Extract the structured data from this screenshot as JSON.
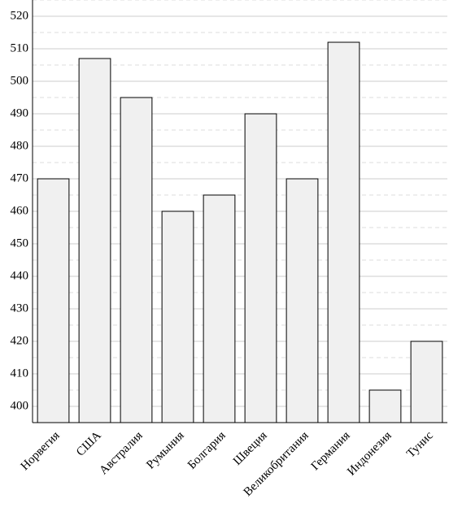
{
  "chart_data": {
    "type": "bar",
    "categories": [
      "Норвегия",
      "США",
      "Австралия",
      "Румыния",
      "Болгария",
      "Швеция",
      "Великобритания",
      "Германия",
      "Индонезия",
      "Тунис"
    ],
    "values": [
      470,
      507,
      495,
      460,
      465,
      490,
      470,
      512,
      405,
      420
    ],
    "color": "#f0f0f0",
    "ylim": [
      395,
      525
    ],
    "yticks": [
      400,
      410,
      420,
      430,
      440,
      450,
      460,
      470,
      480,
      490,
      500,
      510,
      520
    ],
    "minor_yticks": [
      405,
      415,
      425,
      435,
      445,
      455,
      465,
      475,
      485,
      495,
      505,
      515,
      525
    ],
    "grid": true
  }
}
